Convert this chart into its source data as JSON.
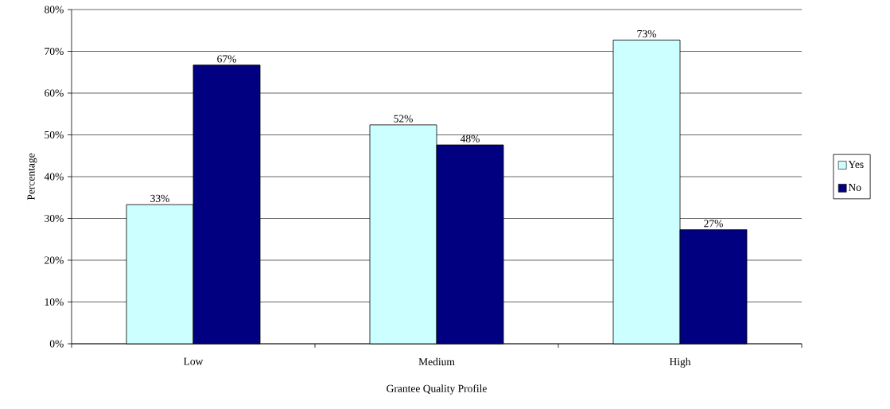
{
  "chart_data": {
    "type": "bar",
    "xlabel": "Grantee Quality Profile",
    "ylabel": "Percentage",
    "categories": [
      "Low",
      "Medium",
      "High"
    ],
    "series": [
      {
        "name": "Yes",
        "color": "#ccffff",
        "values": [
          33.3,
          52.4,
          72.7
        ],
        "value_labels": [
          "33%",
          "52%",
          "73%"
        ]
      },
      {
        "name": "No",
        "color": "#000080",
        "values": [
          66.7,
          47.6,
          27.3
        ],
        "value_labels": [
          "67%",
          "48%",
          "27%"
        ]
      }
    ],
    "ylim": [
      0,
      80
    ],
    "yticks": [
      {
        "value": 0,
        "label": "0%"
      },
      {
        "value": 10,
        "label": "10%"
      },
      {
        "value": 20,
        "label": "20%"
      },
      {
        "value": 30,
        "label": "30%"
      },
      {
        "value": 40,
        "label": "40%"
      },
      {
        "value": 50,
        "label": "50%"
      },
      {
        "value": 60,
        "label": "60%"
      },
      {
        "value": 70,
        "label": "70%"
      },
      {
        "value": 80,
        "label": "80%"
      }
    ],
    "grid": "y",
    "legend": "right"
  }
}
